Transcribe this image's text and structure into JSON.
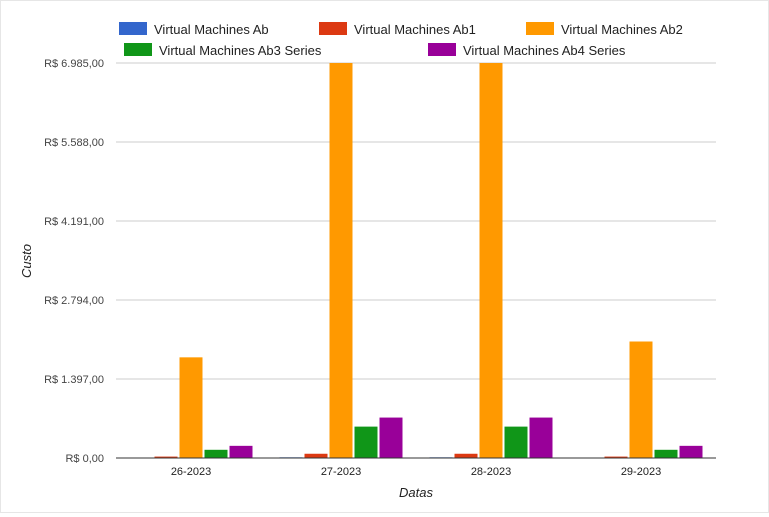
{
  "chart_data": {
    "type": "bar",
    "xlabel": "Datas",
    "ylabel": "Custo",
    "ylim": [
      0,
      6985
    ],
    "y_ticks": [
      "R$ 0,00",
      "R$ 1.397,00",
      "R$ 2.794,00",
      "R$ 4.191,00",
      "R$ 5.588,00",
      "R$ 6.985,00"
    ],
    "y_tick_values": [
      0,
      1397,
      2794,
      4191,
      5588,
      6985
    ],
    "categories": [
      "26-2023",
      "27-2023",
      "28-2023",
      "29-2023"
    ],
    "grid": true,
    "legend_position": "top",
    "series": [
      {
        "name": "Virtual Machines Ab",
        "color": "#3366cc",
        "values": [
          5,
          12,
          12,
          5
        ]
      },
      {
        "name": "Virtual Machines Ab1",
        "color": "#dc3912",
        "values": [
          25,
          75,
          75,
          25
        ]
      },
      {
        "name": "Virtual Machines Ab2",
        "color": "#ff9900",
        "values": [
          1780,
          6985,
          6985,
          2060
        ]
      },
      {
        "name": "Virtual Machines Ab3 Series",
        "color": "#109618",
        "values": [
          145,
          555,
          555,
          145
        ]
      },
      {
        "name": "Virtual Machines Ab4 Series",
        "color": "#990099",
        "values": [
          215,
          715,
          715,
          215
        ]
      }
    ]
  }
}
